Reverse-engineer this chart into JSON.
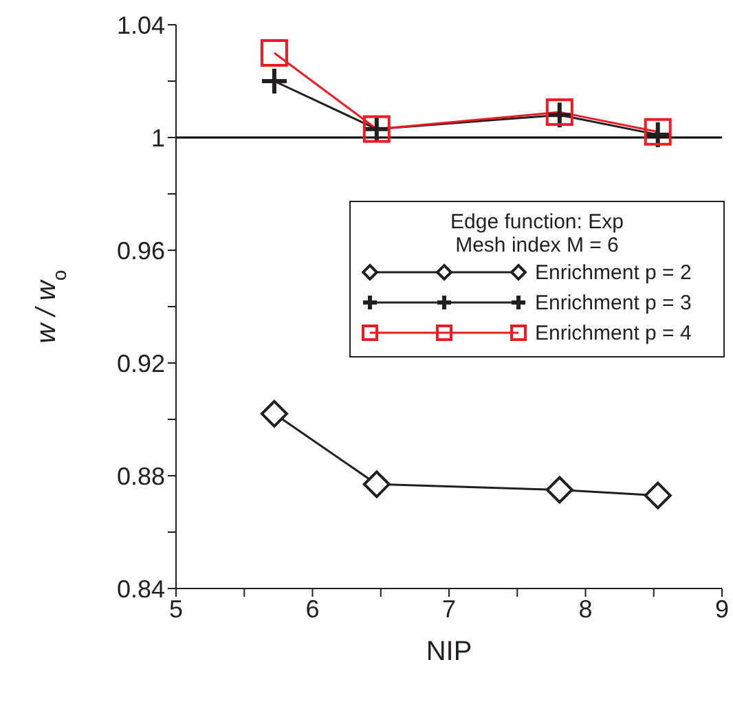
{
  "chart_data": {
    "type": "line",
    "xlabel": "NIP",
    "ylabel": "w / w$_{o}$",
    "legend_title": "Edge function: Exp",
    "annotations": [
      "Mesh index M = 6"
    ],
    "xlim": [
      5,
      9
    ],
    "xticks": [
      5,
      {
        "value": 5.5,
        "label": null
      },
      6,
      {
        "value": 6.5,
        "label": null
      },
      7,
      {
        "value": 7.5,
        "label": null
      },
      8,
      {
        "value": 8.5,
        "label": null
      },
      9
    ],
    "ylim": [
      0.84,
      1.04
    ],
    "yticks": [
      0.84,
      {
        "value": 0.86,
        "label": null
      },
      0.88,
      {
        "value": 0.9,
        "label": null
      },
      0.92,
      {
        "value": 0.94,
        "label": null
      },
      0.96,
      {
        "value": 0.98,
        "label": null
      },
      1,
      {
        "value": 1.02,
        "label": null
      },
      1.04
    ],
    "ref_lines": [
      {
        "axis": "y",
        "value": 1,
        "color": "#000000"
      }
    ],
    "legend": "right",
    "grid": false,
    "x": [
      5.72,
      6.47,
      7.81,
      8.53
    ],
    "series": [
      {
        "name": "Enrichment p = 2",
        "color": "#231f20",
        "marker": "diamond",
        "values": [
          0.902,
          0.877,
          0.875,
          0.873
        ]
      },
      {
        "name": "Enrichment p = 3",
        "color": "#231f20",
        "marker": "cross",
        "values": [
          1.02,
          1.003,
          1.008,
          1.001
        ]
      },
      {
        "name": "Enrichment p = 4",
        "color": "#ed1c24",
        "marker": "square",
        "values": [
          1.03,
          1.003,
          1.009,
          1.002
        ]
      }
    ]
  }
}
